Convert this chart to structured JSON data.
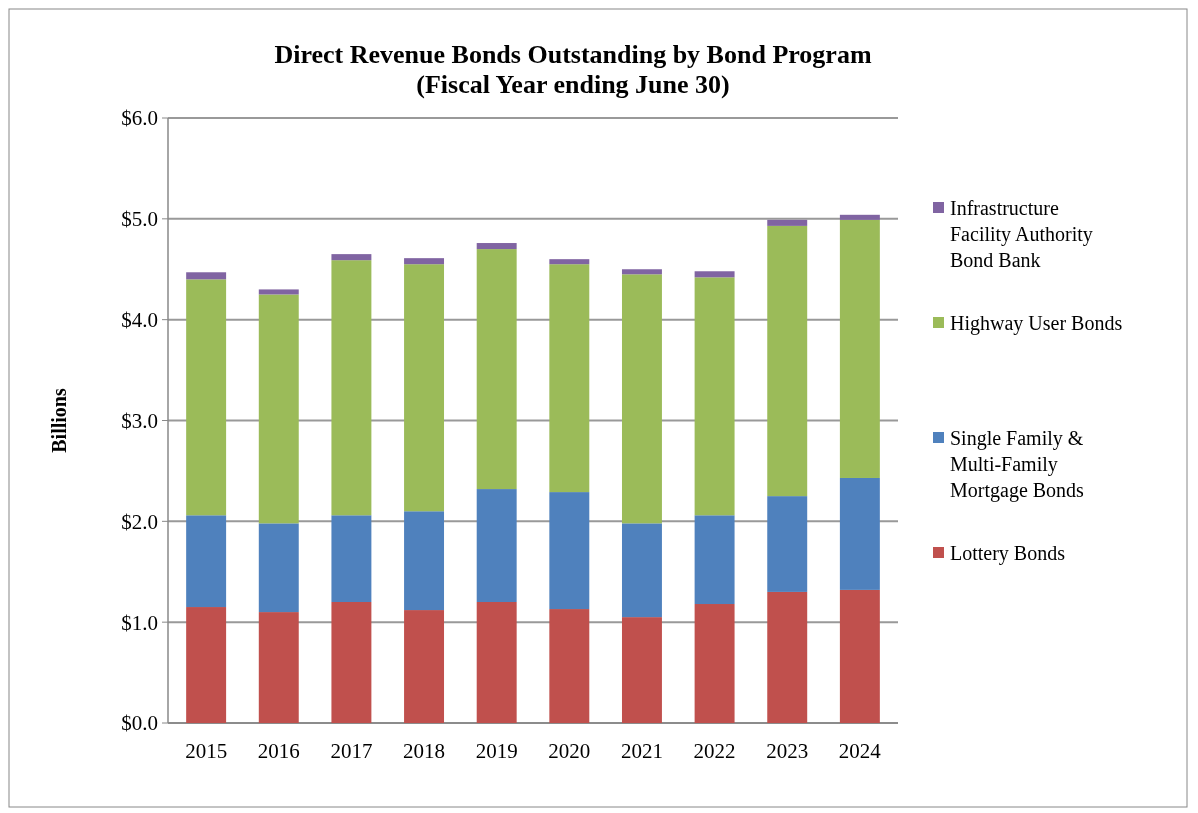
{
  "chart_data": {
    "type": "bar",
    "stacked": true,
    "title": "Direct Revenue Bonds Outstanding by Bond Program\n(Fiscal Year ending June 30)",
    "ylabel": "Billions",
    "categories": [
      "2015",
      "2016",
      "2017",
      "2018",
      "2019",
      "2020",
      "2021",
      "2022",
      "2023",
      "2024"
    ],
    "series": [
      {
        "name": "Lottery Bonds",
        "color": "#c0504d",
        "values": [
          1.15,
          1.1,
          1.2,
          1.12,
          1.2,
          1.13,
          1.05,
          1.18,
          1.3,
          1.32
        ]
      },
      {
        "name": "Single Family & Multi-Family Mortgage Bonds",
        "color": "#4f81bd",
        "values": [
          0.91,
          0.88,
          0.86,
          0.98,
          1.12,
          1.16,
          0.93,
          0.88,
          0.95,
          1.11
        ]
      },
      {
        "name": "Highway User Bonds",
        "color": "#9bbb59",
        "values": [
          2.34,
          2.27,
          2.53,
          2.45,
          2.38,
          2.26,
          2.47,
          2.36,
          2.68,
          2.56
        ]
      },
      {
        "name": "Infrastructure Facility Authority Bond Bank",
        "color": "#8064a2",
        "values": [
          0.07,
          0.05,
          0.06,
          0.06,
          0.06,
          0.05,
          0.05,
          0.06,
          0.06,
          0.05
        ]
      }
    ],
    "ylim": [
      0,
      6
    ],
    "yticks": [
      {
        "value": 0,
        "label": "$0.0"
      },
      {
        "value": 1,
        "label": "$1.0"
      },
      {
        "value": 2,
        "label": "$2.0"
      },
      {
        "value": 3,
        "label": "$3.0"
      },
      {
        "value": 4,
        "label": "$4.0"
      },
      {
        "value": 5,
        "label": "$5.0"
      },
      {
        "value": 6,
        "label": "$6.0"
      }
    ],
    "grid": "y",
    "legend": "right"
  }
}
